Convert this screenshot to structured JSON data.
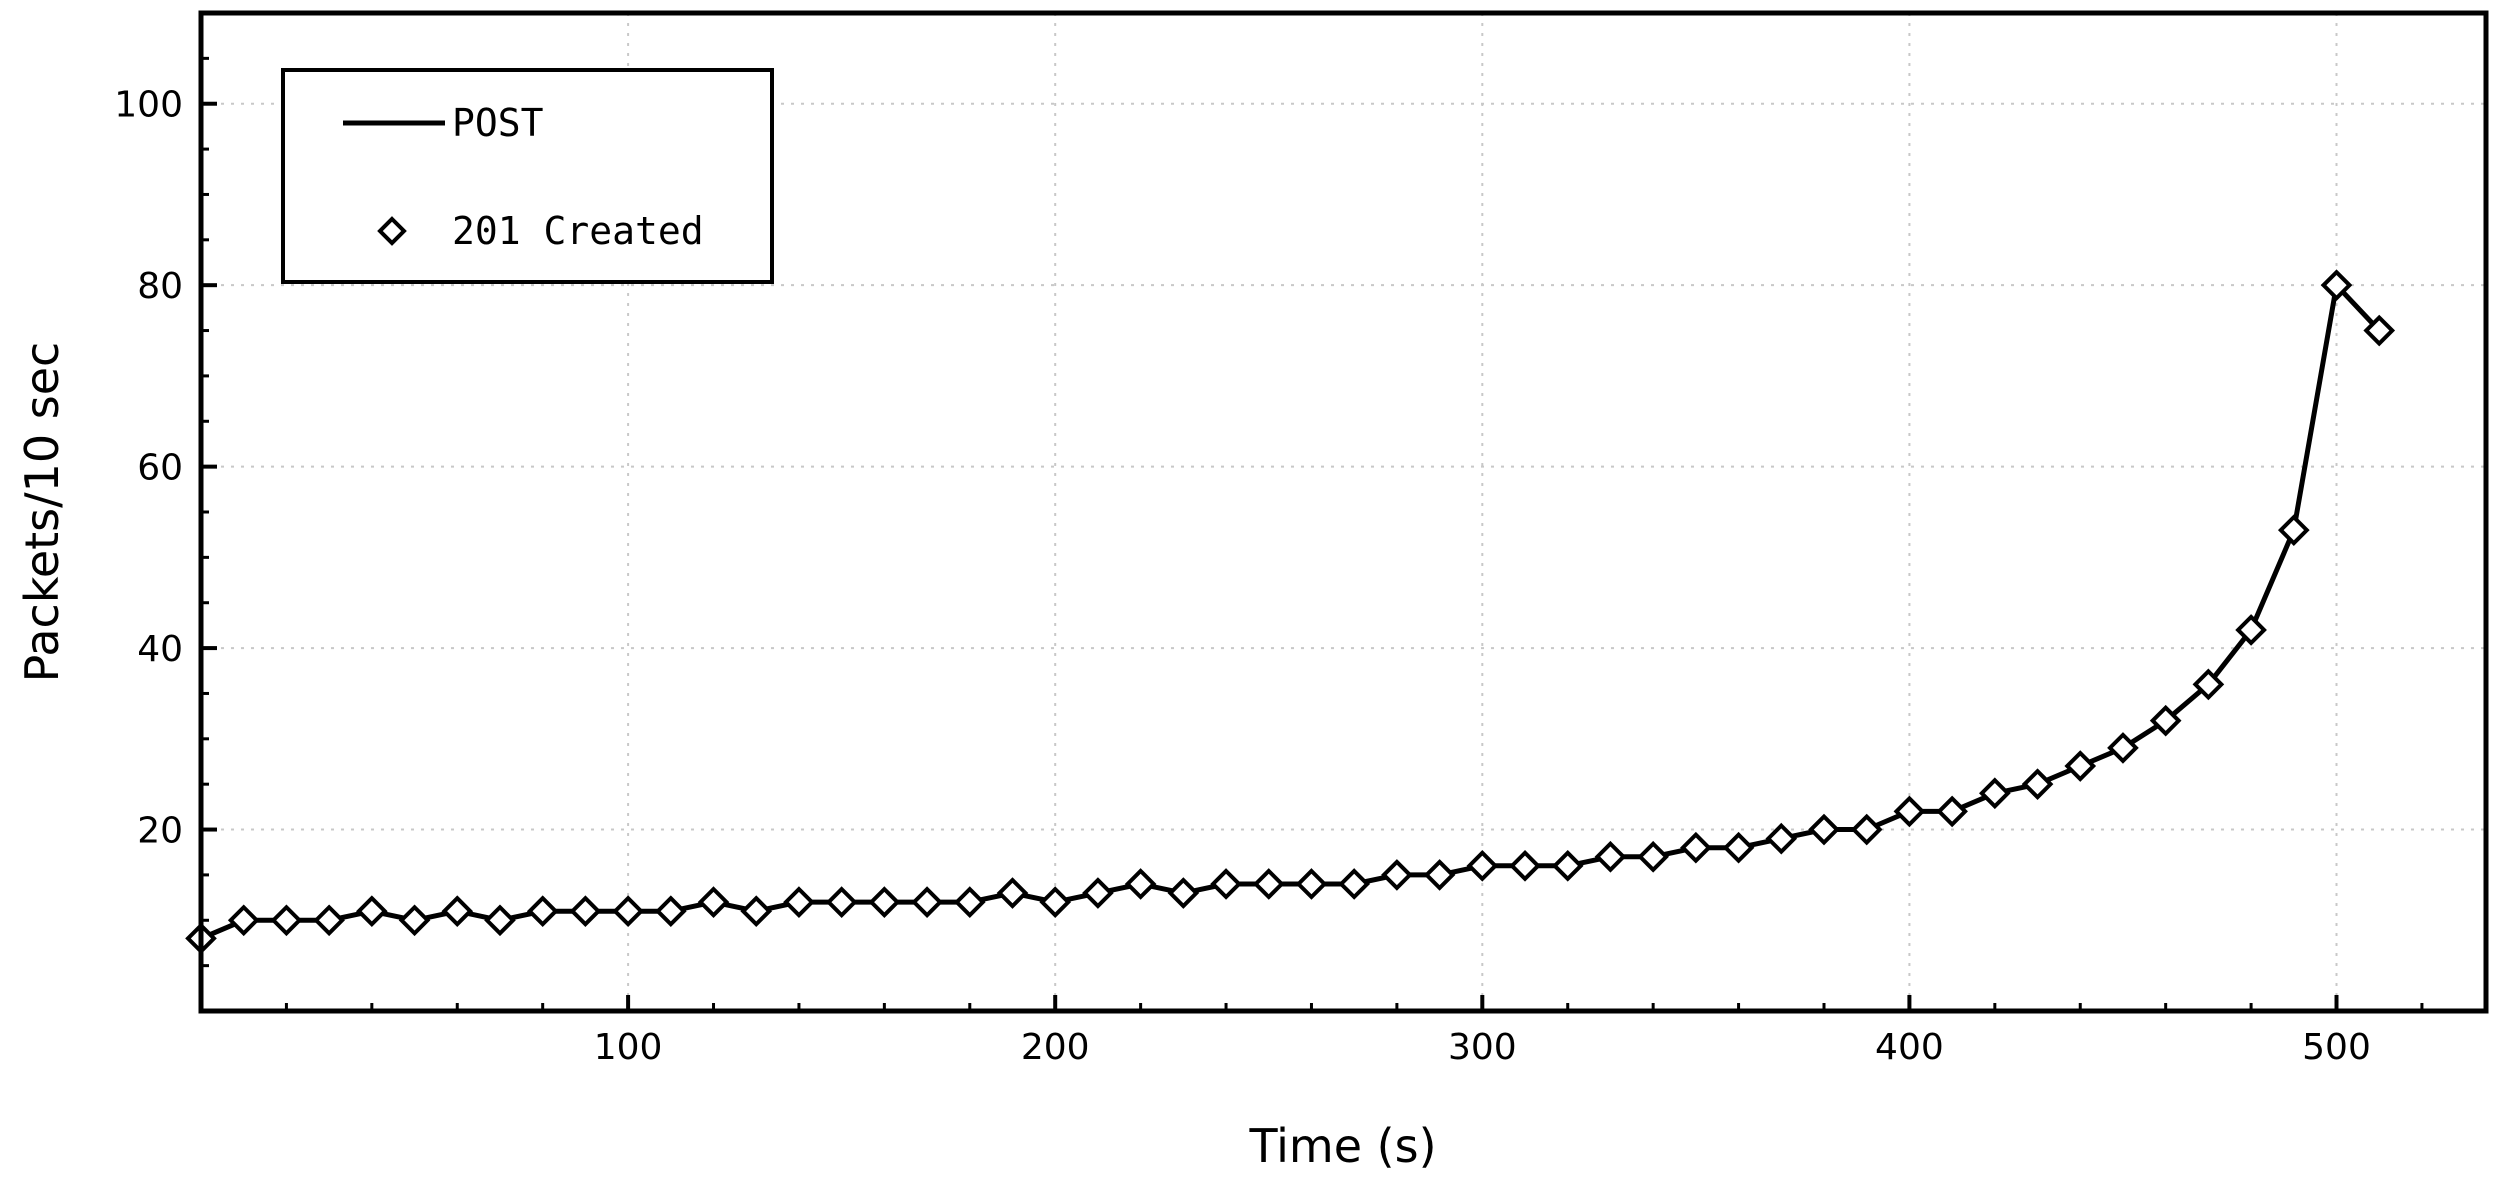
{
  "chart_data": {
    "type": "line",
    "xlabel": "Time (s)",
    "ylabel": "Packets/10 sec",
    "xlim": [
      0,
      535
    ],
    "ylim": [
      0,
      110
    ],
    "x_ticks": [
      100,
      200,
      300,
      400,
      500
    ],
    "y_ticks": [
      20,
      40,
      60,
      80,
      100
    ],
    "grid": true,
    "legend_position": "top-left",
    "series": [
      {
        "name": "POST",
        "style": "line",
        "x": [
          0,
          10,
          20,
          30,
          40,
          50,
          60,
          70,
          80,
          90,
          100,
          110,
          120,
          130,
          140,
          150,
          160,
          170,
          180,
          190,
          200,
          210,
          220,
          230,
          240,
          250,
          260,
          270,
          280,
          290,
          300,
          310,
          320,
          330,
          340,
          350,
          360,
          370,
          380,
          390,
          400,
          410,
          420,
          430,
          440,
          450,
          460,
          470,
          480,
          490,
          500,
          510
        ],
        "y": [
          8,
          10,
          10,
          10,
          11,
          10,
          11,
          10,
          11,
          11,
          11,
          11,
          12,
          11,
          12,
          12,
          12,
          12,
          12,
          13,
          12,
          13,
          14,
          13,
          14,
          14,
          14,
          14,
          15,
          15,
          16,
          16,
          16,
          17,
          17,
          18,
          18,
          19,
          20,
          20,
          22,
          22,
          24,
          25,
          27,
          29,
          32,
          36,
          42,
          53,
          80,
          75
        ]
      },
      {
        "name": "201 Created",
        "style": "diamond-markers",
        "x": [
          0,
          10,
          20,
          30,
          40,
          50,
          60,
          70,
          80,
          90,
          100,
          110,
          120,
          130,
          140,
          150,
          160,
          170,
          180,
          190,
          200,
          210,
          220,
          230,
          240,
          250,
          260,
          270,
          280,
          290,
          300,
          310,
          320,
          330,
          340,
          350,
          360,
          370,
          380,
          390,
          400,
          410,
          420,
          430,
          440,
          450,
          460,
          470,
          480,
          490,
          500,
          510
        ],
        "y": [
          8,
          10,
          10,
          10,
          11,
          10,
          11,
          10,
          11,
          11,
          11,
          11,
          12,
          11,
          12,
          12,
          12,
          12,
          12,
          13,
          12,
          13,
          14,
          13,
          14,
          14,
          14,
          14,
          15,
          15,
          16,
          16,
          16,
          17,
          17,
          18,
          18,
          19,
          20,
          20,
          22,
          22,
          24,
          25,
          27,
          29,
          32,
          36,
          42,
          53,
          80,
          75
        ]
      }
    ]
  }
}
